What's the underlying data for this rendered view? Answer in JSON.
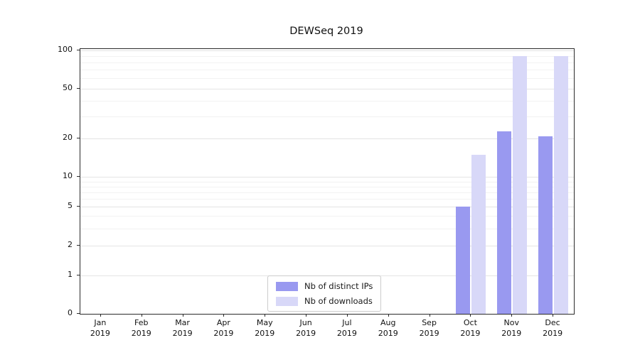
{
  "chart": {
    "title": "DEWSeq 2019",
    "y_ticks": [
      0,
      1,
      2,
      5,
      10,
      20,
      50,
      100
    ],
    "y_minor_ticks": [
      3,
      4,
      6,
      7,
      8,
      9,
      30,
      40,
      60,
      70,
      80,
      90
    ]
  },
  "chart_data": {
    "type": "bar",
    "title": "DEWSeq 2019",
    "categories": [
      "Jan 2019",
      "Feb 2019",
      "Mar 2019",
      "Apr 2019",
      "May 2019",
      "Jun 2019",
      "Jul 2019",
      "Aug 2019",
      "Sep 2019",
      "Oct 2019",
      "Nov 2019",
      "Dec 2019"
    ],
    "series": [
      {
        "name": "Nb of distinct IPs",
        "color": "#9999f0",
        "values": [
          0,
          0,
          0,
          0,
          0,
          0,
          0,
          0,
          0,
          5,
          23,
          21
        ]
      },
      {
        "name": "Nb of downloads",
        "color": "#d8d8f8",
        "values": [
          0,
          0,
          0,
          0,
          0,
          0,
          0,
          0,
          0,
          15,
          90,
          90
        ]
      }
    ],
    "xlabel": "",
    "ylabel": "",
    "yscale": "log-like with 0 baseline",
    "ylim": [
      0,
      100
    ],
    "y_ticks": [
      0,
      1,
      2,
      5,
      10,
      20,
      50,
      100
    ],
    "grid": "horizontal",
    "legend_position": "lower center inside plot"
  }
}
